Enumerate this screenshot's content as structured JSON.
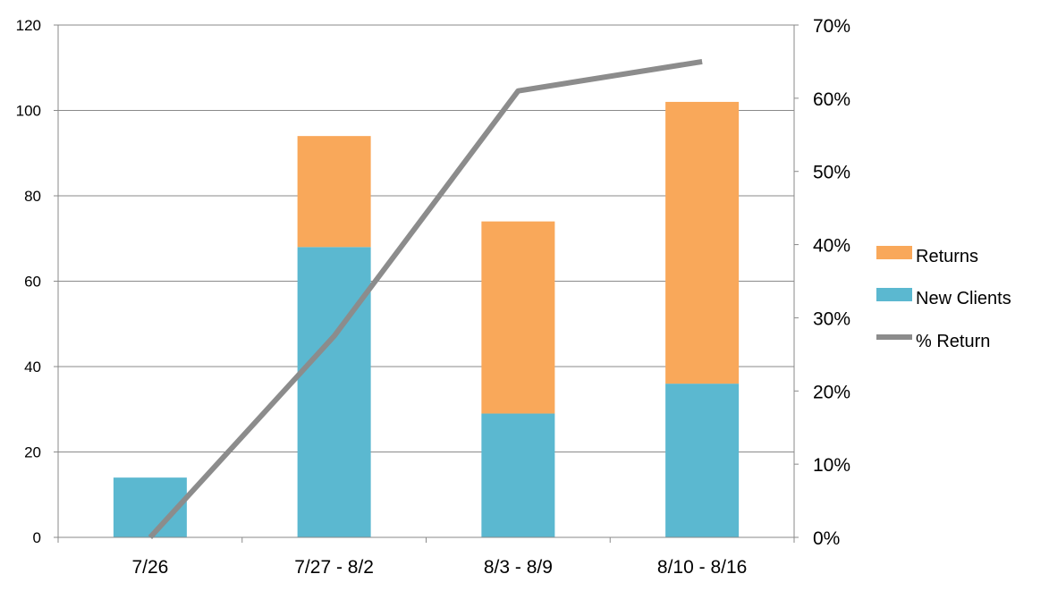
{
  "chart_data": {
    "type": "bar",
    "stacked": true,
    "categories": [
      "7/26",
      "7/27 - 8/2",
      "8/3 - 8/9",
      "8/10 - 8/16"
    ],
    "series": [
      {
        "name": "New Clients",
        "type": "bar",
        "axis": "left",
        "color": "#5bb8d0",
        "values": [
          14,
          68,
          29,
          36
        ]
      },
      {
        "name": "Returns",
        "type": "bar",
        "axis": "left",
        "color": "#f9a85a",
        "values": [
          0,
          26,
          45,
          66
        ]
      },
      {
        "name": "% Return",
        "type": "line",
        "axis": "right",
        "color": "#8c8c8c",
        "values": [
          0,
          0.275,
          0.61,
          0.65
        ]
      }
    ],
    "y_left": {
      "min": 0,
      "max": 120,
      "ticks": [
        "0",
        "20",
        "40",
        "60",
        "80",
        "100",
        "120"
      ]
    },
    "y_right": {
      "min": 0,
      "max": 0.7,
      "ticks": [
        "0%",
        "10%",
        "20%",
        "30%",
        "40%",
        "50%",
        "60%",
        "70%"
      ]
    },
    "grid": true,
    "legend": {
      "position": "right",
      "entries": [
        "Returns",
        "New Clients",
        "% Return"
      ]
    }
  }
}
